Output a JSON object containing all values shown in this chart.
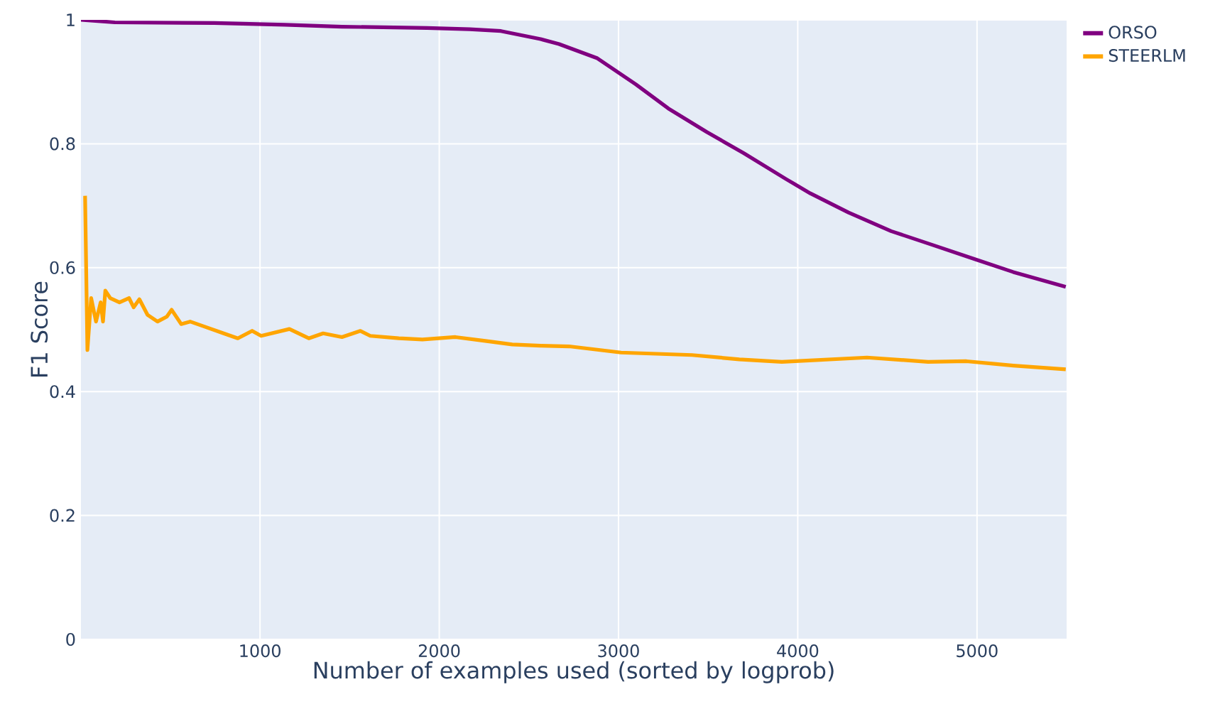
{
  "chart_data": {
    "type": "line",
    "xlabel": "Number of examples used (sorted by logprob)",
    "ylabel": "F1 Score",
    "xlim": [
      1,
      5500
    ],
    "ylim": [
      0,
      1
    ],
    "xticks": [
      1000,
      2000,
      3000,
      4000,
      5000
    ],
    "yticks": [
      0,
      0.2,
      0.4,
      0.6,
      0.8,
      1
    ],
    "grid": true,
    "legend": "top right",
    "marker": "none",
    "line_style": "solid",
    "series": [
      {
        "name": "ORSO",
        "color": "#800080",
        "x": [
          1,
          190,
          744,
          1140,
          1457,
          1932,
          2169,
          2344,
          2565,
          2668,
          2882,
          3096,
          3278,
          3492,
          3698,
          3935,
          4070,
          4283,
          4521,
          4759,
          4996,
          5202,
          5495
        ],
        "values": [
          1.0,
          0.996,
          0.995,
          0.992,
          0.989,
          0.987,
          0.985,
          0.982,
          0.969,
          0.961,
          0.938,
          0.896,
          0.857,
          0.819,
          0.785,
          0.743,
          0.72,
          0.689,
          0.659,
          0.636,
          0.613,
          0.593,
          0.569
        ]
      },
      {
        "name": "STEERLM",
        "color": "#ffa500",
        "x": [
          24,
          37,
          58,
          85,
          111,
          124,
          137,
          164,
          216,
          269,
          295,
          327,
          372,
          428,
          480,
          507,
          560,
          610,
          689,
          797,
          876,
          956,
          1006,
          1164,
          1272,
          1352,
          1457,
          1560,
          1615,
          1774,
          1906,
          2090,
          2249,
          2407,
          2565,
          2724,
          3014,
          3410,
          3674,
          3911,
          4386,
          4727,
          4941,
          5202,
          5495
        ],
        "values": [
          0.716,
          0.467,
          0.551,
          0.513,
          0.544,
          0.513,
          0.563,
          0.551,
          0.544,
          0.551,
          0.536,
          0.549,
          0.524,
          0.513,
          0.521,
          0.532,
          0.509,
          0.513,
          0.505,
          0.494,
          0.486,
          0.498,
          0.49,
          0.501,
          0.486,
          0.494,
          0.488,
          0.498,
          0.49,
          0.486,
          0.484,
          0.488,
          0.482,
          0.476,
          0.474,
          0.473,
          0.463,
          0.459,
          0.452,
          0.448,
          0.455,
          0.448,
          0.449,
          0.442,
          0.436
        ]
      }
    ]
  }
}
